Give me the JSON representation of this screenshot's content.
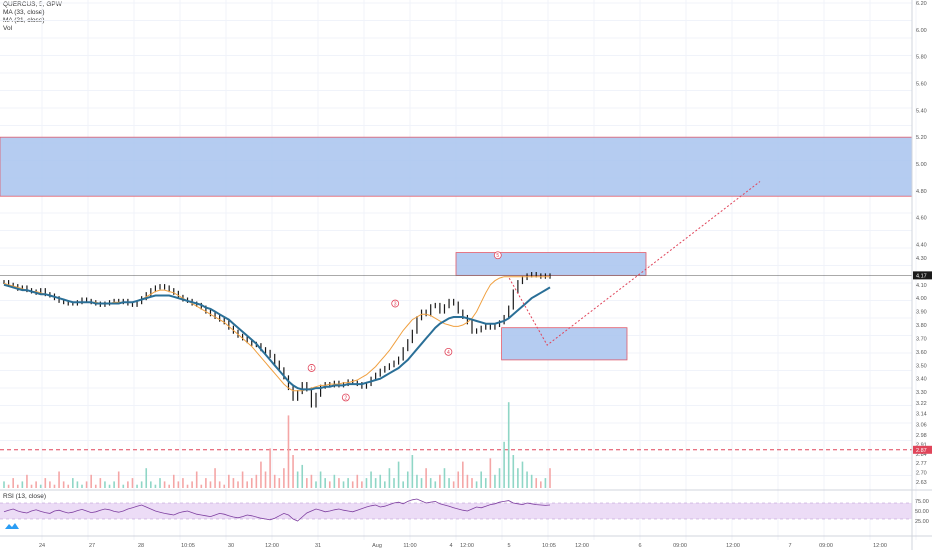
{
  "legend": {
    "symbol": "QUERCUS, 5, GPW",
    "ma1": "MA (33, close)",
    "ma2": "MA (21, close)",
    "vol": "Vol",
    "rsi": "RSI (13, close)"
  },
  "colors": {
    "zone_fill": "#a8c3ee",
    "zone_border": "#e05a6a",
    "ma_slow": "#2a6f97",
    "ma_fast": "#f0a040",
    "candle": "#1a1a1a",
    "vol_up": "#8fd6c6",
    "vol_down": "#f4a6a6",
    "dashed_level": "#e0455a",
    "rsi_line": "#7e3fa0",
    "rsi_band": "#ecdcf6",
    "price_tag": "#1a1a1a",
    "level_tag": "#e0455a"
  },
  "chart_data": {
    "type": "candlestick",
    "title": "QUERCUS, 5, GPW",
    "ylim": [
      2.6,
      6.2
    ],
    "y_ticks": [
      "6.20",
      "6.00",
      "5.80",
      "5.60",
      "5.40",
      "5.20",
      "5.00",
      "4.80",
      "4.60",
      "4.40",
      "4.30",
      "4.17",
      "4.10",
      "4.00",
      "3.90",
      "3.80",
      "3.70",
      "3.60",
      "3.50",
      "3.40",
      "3.30",
      "3.22",
      "3.14",
      "3.06",
      "2.98",
      "2.91",
      "2.84",
      "2.77",
      "2.70",
      "2.63"
    ],
    "current_price_label": "4.17",
    "dashed_level_label": "2.87",
    "x_tick_labels": [
      "24",
      "27",
      "28",
      "10:05",
      "30",
      "12:00",
      "31",
      "Aug",
      "11:00",
      "4",
      "12:00",
      "5",
      "10:05",
      "12:00",
      "6",
      "09:00",
      "12:00",
      "7",
      "09:00",
      "12:00"
    ],
    "zones": [
      {
        "name": "upper-target-zone",
        "x0": 0,
        "x1": 240,
        "y0": 4.76,
        "y1": 5.2
      },
      {
        "name": "resistance-zone",
        "x0": 120,
        "x1": 170,
        "y0": 4.17,
        "y1": 4.34
      },
      {
        "name": "pullback-zone",
        "x0": 132,
        "x1": 165,
        "y0": 3.54,
        "y1": 3.78
      }
    ],
    "wave_labels": [
      {
        "text": "1",
        "x": 82,
        "y": 3.48
      },
      {
        "text": "2",
        "x": 91,
        "y": 3.26
      },
      {
        "text": "3",
        "x": 104,
        "y": 3.96
      },
      {
        "text": "4",
        "x": 118,
        "y": 3.6
      },
      {
        "text": "5",
        "x": 131,
        "y": 4.32
      }
    ],
    "projection_path": {
      "x": [
        134,
        144,
        200
      ],
      "y": [
        4.15,
        3.65,
        4.87
      ]
    },
    "close": [
      4.12,
      4.1,
      4.09,
      4.07,
      4.08,
      4.06,
      4.05,
      4.04,
      4.06,
      4.03,
      4.02,
      4.0,
      3.98,
      3.97,
      3.96,
      3.96,
      3.97,
      3.99,
      3.98,
      3.97,
      3.96,
      3.95,
      3.96,
      3.97,
      3.98,
      3.97,
      3.98,
      3.96,
      3.95,
      3.97,
      4.0,
      4.03,
      4.06,
      4.08,
      4.09,
      4.08,
      4.06,
      4.04,
      4.01,
      3.99,
      3.98,
      3.96,
      3.95,
      3.93,
      3.9,
      3.88,
      3.86,
      3.84,
      3.82,
      3.78,
      3.75,
      3.72,
      3.7,
      3.68,
      3.66,
      3.65,
      3.62,
      3.6,
      3.57,
      3.52,
      3.47,
      3.41,
      3.33,
      3.25,
      3.3,
      3.36,
      3.32,
      3.2,
      3.28,
      3.34,
      3.36,
      3.35,
      3.37,
      3.35,
      3.36,
      3.38,
      3.37,
      3.36,
      3.34,
      3.36,
      3.4,
      3.43,
      3.46,
      3.48,
      3.5,
      3.52,
      3.55,
      3.62,
      3.68,
      3.75,
      3.85,
      3.9,
      3.88,
      3.94,
      3.95,
      3.9,
      3.94,
      3.98,
      3.96,
      3.9,
      3.86,
      3.82,
      3.75,
      3.76,
      3.78,
      3.8,
      3.78,
      3.8,
      3.82,
      3.86,
      3.93,
      4.05,
      4.12,
      4.15,
      4.17,
      4.18,
      4.17,
      4.16,
      4.17,
      4.16
    ],
    "ma_slow": [
      4.1,
      4.09,
      4.08,
      4.07,
      4.06,
      4.06,
      4.05,
      4.04,
      4.03,
      4.03,
      4.02,
      4.01,
      4.0,
      3.99,
      3.98,
      3.97,
      3.97,
      3.97,
      3.97,
      3.97,
      3.96,
      3.96,
      3.96,
      3.96,
      3.96,
      3.96,
      3.97,
      3.97,
      3.97,
      3.98,
      3.99,
      4.0,
      4.01,
      4.02,
      4.02,
      4.02,
      4.02,
      4.01,
      4.0,
      3.99,
      3.98,
      3.97,
      3.96,
      3.95,
      3.93,
      3.92,
      3.9,
      3.88,
      3.86,
      3.84,
      3.81,
      3.78,
      3.75,
      3.72,
      3.69,
      3.66,
      3.62,
      3.58,
      3.54,
      3.5,
      3.46,
      3.42,
      3.38,
      3.35,
      3.33,
      3.32,
      3.32,
      3.32,
      3.33,
      3.33,
      3.34,
      3.34,
      3.35,
      3.35,
      3.35,
      3.36,
      3.36,
      3.36,
      3.36,
      3.37,
      3.38,
      3.39,
      3.4,
      3.42,
      3.44,
      3.46,
      3.48,
      3.51,
      3.54,
      3.58,
      3.62,
      3.66,
      3.7,
      3.74,
      3.78,
      3.81,
      3.83,
      3.85,
      3.86,
      3.86,
      3.86,
      3.85,
      3.84,
      3.83,
      3.82,
      3.81,
      3.81,
      3.81,
      3.82,
      3.83,
      3.85,
      3.88,
      3.91,
      3.94,
      3.97,
      4.0,
      4.02,
      4.04,
      4.06,
      4.08
    ],
    "ma_fast": [
      4.11,
      4.1,
      4.09,
      4.08,
      4.07,
      4.06,
      4.05,
      4.05,
      4.04,
      4.03,
      4.02,
      4.01,
      4.0,
      3.99,
      3.98,
      3.97,
      3.97,
      3.97,
      3.97,
      3.97,
      3.97,
      3.96,
      3.96,
      3.96,
      3.97,
      3.97,
      3.97,
      3.97,
      3.97,
      3.98,
      3.99,
      4.01,
      4.03,
      4.05,
      4.06,
      4.06,
      4.05,
      4.04,
      4.02,
      4.0,
      3.98,
      3.96,
      3.94,
      3.92,
      3.9,
      3.88,
      3.86,
      3.84,
      3.82,
      3.79,
      3.76,
      3.73,
      3.7,
      3.67,
      3.64,
      3.6,
      3.56,
      3.52,
      3.48,
      3.44,
      3.4,
      3.36,
      3.33,
      3.31,
      3.31,
      3.31,
      3.32,
      3.33,
      3.34,
      3.35,
      3.35,
      3.36,
      3.36,
      3.36,
      3.37,
      3.37,
      3.38,
      3.39,
      3.41,
      3.43,
      3.46,
      3.49,
      3.53,
      3.57,
      3.61,
      3.66,
      3.71,
      3.76,
      3.8,
      3.84,
      3.86,
      3.88,
      3.88,
      3.87,
      3.85,
      3.83,
      3.81,
      3.8,
      3.79,
      3.79,
      3.8,
      3.82,
      3.85,
      3.9,
      3.97,
      4.04,
      4.1,
      4.13,
      4.15,
      4.16,
      4.16,
      4.16,
      4.16,
      4.16,
      4.16,
      4.16,
      4.16,
      4.16,
      4.16,
      4.16
    ],
    "volume": [
      2,
      1,
      3,
      1,
      2,
      4,
      1,
      2,
      1,
      3,
      2,
      1,
      5,
      2,
      1,
      3,
      2,
      1,
      2,
      4,
      1,
      3,
      2,
      1,
      2,
      5,
      1,
      2,
      3,
      1,
      2,
      6,
      2,
      1,
      3,
      2,
      1,
      4,
      2,
      3,
      1,
      2,
      5,
      1,
      3,
      2,
      6,
      2,
      1,
      4,
      3,
      2,
      5,
      2,
      3,
      4,
      8,
      5,
      12,
      4,
      3,
      6,
      22,
      10,
      5,
      7,
      3,
      4,
      2,
      5,
      3,
      2,
      4,
      3,
      2,
      3,
      2,
      4,
      2,
      3,
      5,
      3,
      4,
      2,
      6,
      3,
      8,
      2,
      5,
      10,
      4,
      3,
      6,
      3,
      2,
      4,
      6,
      3,
      2,
      5,
      8,
      4,
      3,
      2,
      5,
      3,
      9,
      4,
      6,
      14,
      26,
      10,
      6,
      8,
      5,
      4,
      3,
      2,
      3,
      6
    ],
    "rsi": [
      48,
      52,
      55,
      50,
      47,
      45,
      50,
      53,
      49,
      46,
      44,
      50,
      52,
      48,
      45,
      47,
      51,
      54,
      50,
      46,
      48,
      52,
      55,
      53,
      49,
      47,
      50,
      55,
      58,
      62,
      65,
      60,
      55,
      50,
      47,
      44,
      42,
      40,
      45,
      48,
      50,
      46,
      42,
      40,
      38,
      36,
      40,
      44,
      42,
      38,
      35,
      33,
      36,
      40,
      38,
      35,
      32,
      30,
      28,
      32,
      38,
      44,
      40,
      30,
      25,
      35,
      45,
      50,
      55,
      52,
      48,
      50,
      53,
      55,
      52,
      50,
      48,
      52,
      56,
      60,
      63,
      65,
      60,
      62,
      66,
      70,
      72,
      68,
      74,
      78,
      80,
      75,
      70,
      72,
      74,
      68,
      65,
      62,
      58,
      55,
      52,
      50,
      55,
      60,
      58,
      62,
      66,
      68,
      72,
      74,
      76,
      70,
      68,
      66,
      70,
      68,
      66,
      65,
      64,
      65
    ]
  }
}
